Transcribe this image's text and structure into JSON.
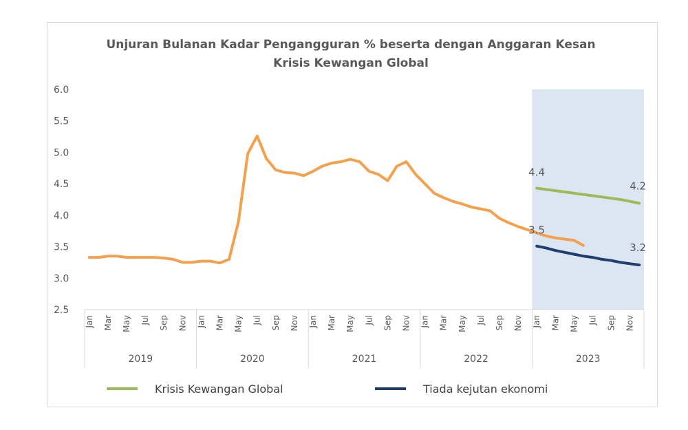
{
  "chart_data": {
    "type": "line",
    "title": "Unjuran Bulanan Kadar Pengangguran % beserta dengan Anggaran Kesan Krisis Kewangan Global",
    "title_lines": [
      "Unjuran Bulanan Kadar Pengangguran % beserta dengan Anggaran Kesan",
      "Krisis Kewangan Global"
    ],
    "ylim": [
      2.5,
      6.0
    ],
    "yticks": [
      "2.5",
      "3.0",
      "3.5",
      "4.0",
      "4.5",
      "5.0",
      "5.5",
      "6.0"
    ],
    "x_tick_labels": [
      "Jan",
      "Mar",
      "May",
      "Jul",
      "Sep",
      "Nov",
      "Jan",
      "Mar",
      "May",
      "Jul",
      "Sep",
      "Nov",
      "Jan",
      "Mar",
      "May",
      "Jul",
      "Sep",
      "Nov",
      "Jan",
      "Mar",
      "May",
      "Jul",
      "Sep",
      "Nov",
      "Jan",
      "Mar",
      "May",
      "Jul",
      "Sep",
      "Nov"
    ],
    "years": [
      "2019",
      "2020",
      "2021",
      "2022",
      "2023"
    ],
    "projection_shaded_year": "2023",
    "grid": false,
    "legend_position": "bottom",
    "series": [
      {
        "name": "",
        "color": "#f4a14e",
        "start_month": "2019-01",
        "values": [
          3.33,
          3.33,
          3.35,
          3.35,
          3.33,
          3.33,
          3.33,
          3.33,
          3.32,
          3.3,
          3.25,
          3.25,
          3.27,
          3.27,
          3.24,
          3.3,
          3.9,
          4.98,
          5.26,
          4.9,
          4.72,
          4.68,
          4.67,
          4.63,
          4.7,
          4.78,
          4.83,
          4.85,
          4.89,
          4.85,
          4.7,
          4.65,
          4.55,
          4.78,
          4.85,
          4.65,
          4.5,
          4.35,
          4.28,
          4.22,
          4.18,
          4.13,
          4.1,
          4.07,
          3.95,
          3.88,
          3.82,
          3.77,
          3.72,
          3.67,
          3.64,
          3.62,
          3.6,
          3.52
        ]
      },
      {
        "name": "Krisis Kewangan Global",
        "color": "#9bbb59",
        "start_month": "2023-01",
        "values": [
          4.43,
          4.41,
          4.39,
          4.37,
          4.35,
          4.33,
          4.31,
          4.29,
          4.27,
          4.25,
          4.22,
          4.19
        ],
        "label_start": "4.4",
        "label_end": "4.2"
      },
      {
        "name": "Tiada kejutan ekonomi",
        "color": "#1f3e6e",
        "start_month": "2023-01",
        "values": [
          3.51,
          3.48,
          3.44,
          3.41,
          3.38,
          3.35,
          3.33,
          3.3,
          3.28,
          3.25,
          3.23,
          3.21
        ],
        "label_start": "3.5",
        "label_end": "3.2"
      }
    ],
    "shading_color": "#dce6f2"
  }
}
